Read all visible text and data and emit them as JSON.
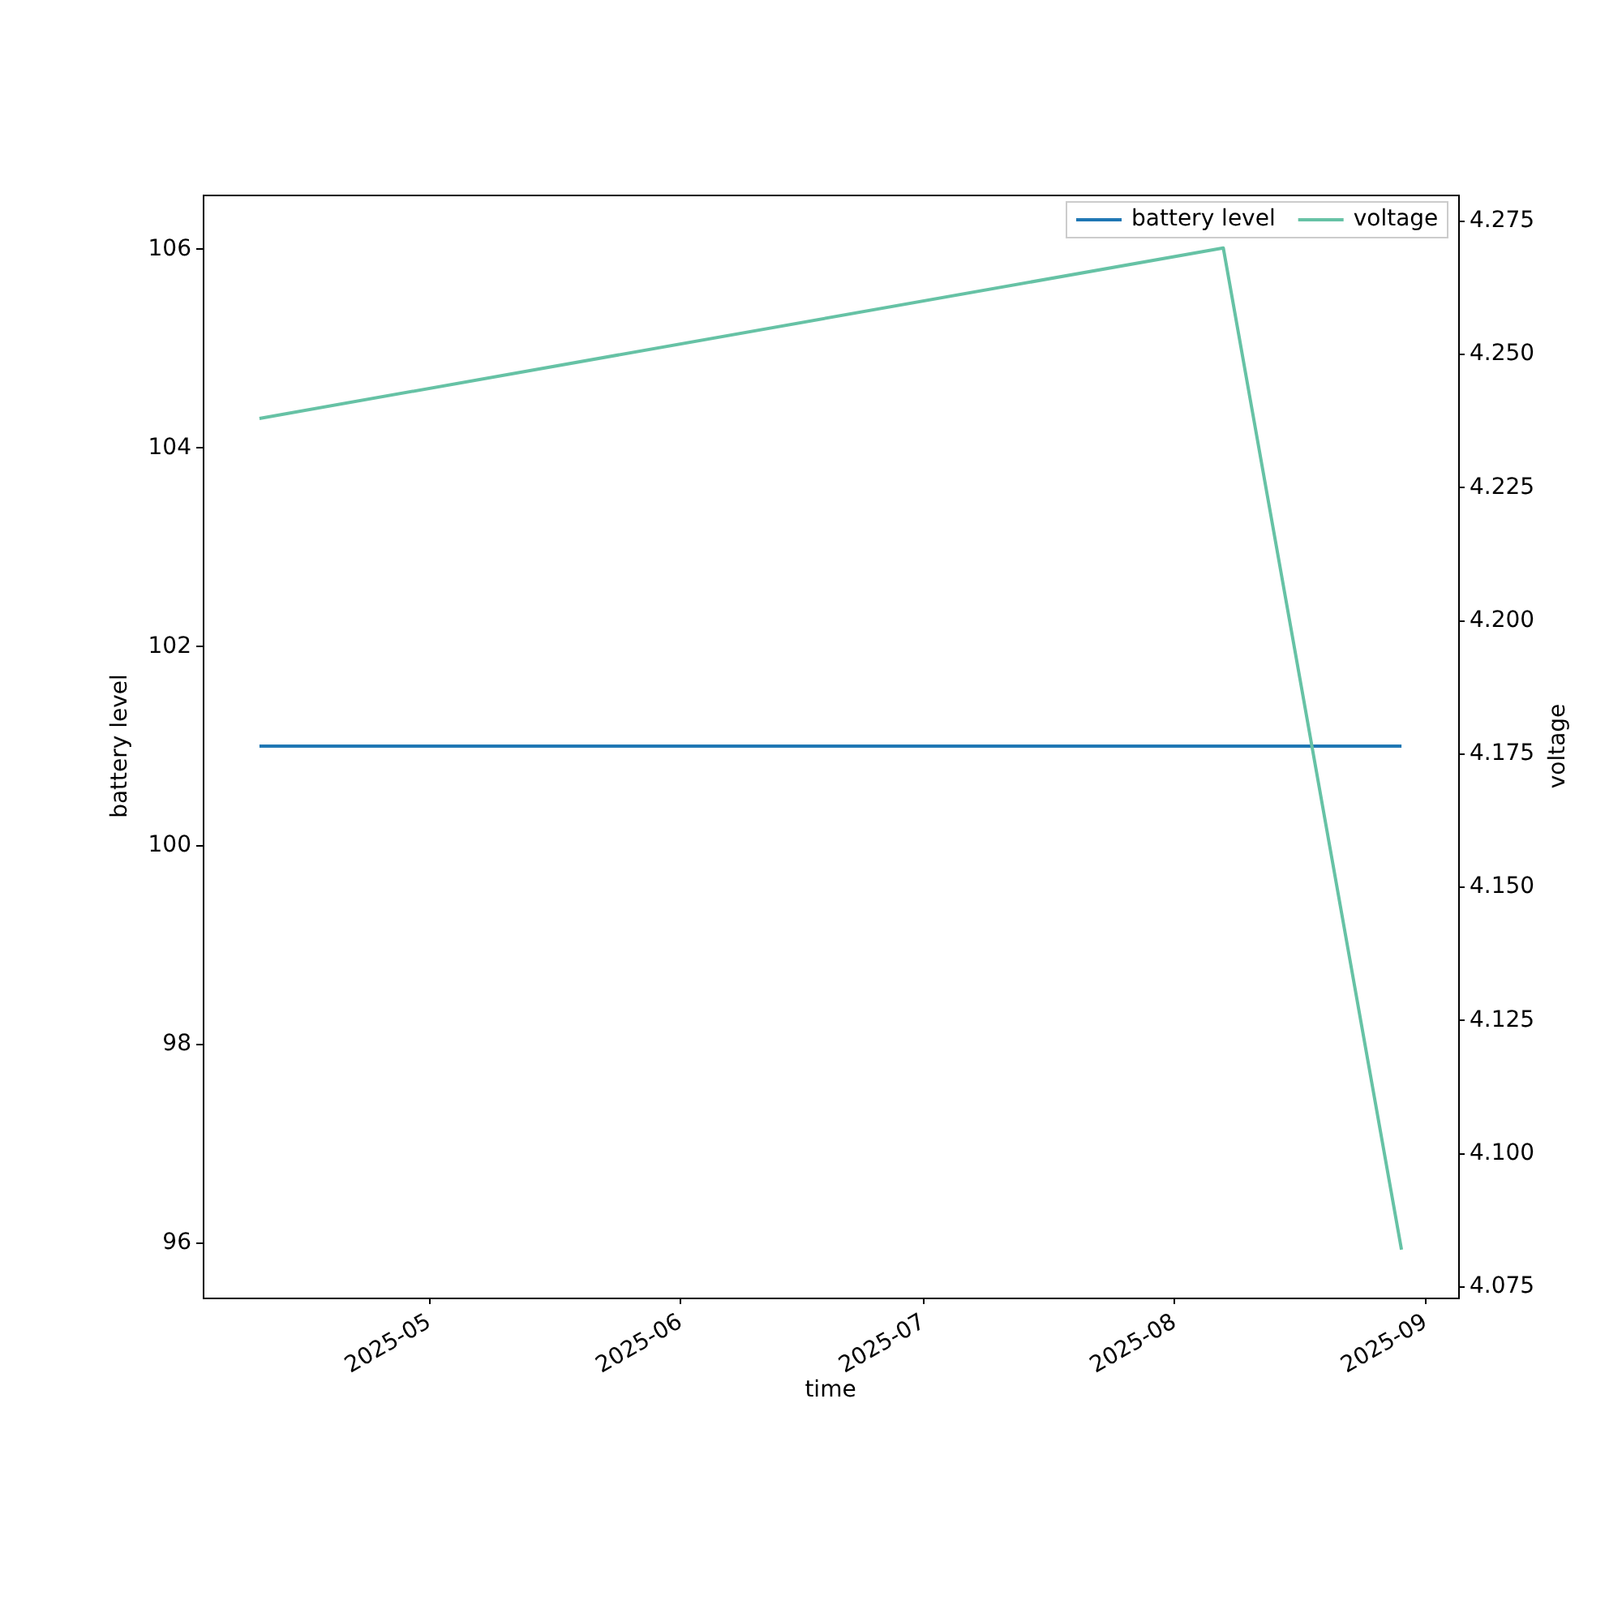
{
  "chart_data": {
    "type": "line",
    "xlabel": "time",
    "ylabel": "battery level",
    "y2label": "voltage",
    "x": [
      "2025-04-10",
      "2025-08-07",
      "2025-08-29"
    ],
    "series": [
      {
        "name": "battery level",
        "color": "#1f77b4",
        "values": [
          101,
          101,
          101
        ]
      },
      {
        "name": "voltage",
        "color": "#66c2a5",
        "values": [
          4.238,
          4.27,
          4.082
        ],
        "axis": "y2"
      }
    ],
    "xlim": [
      "2025-04-03",
      "2025-09-05"
    ],
    "xticks": [
      "2025-05",
      "2025-06",
      "2025-07",
      "2025-08",
      "2025-09"
    ],
    "ylim": [
      95.45,
      106.55
    ],
    "yticks": [
      96,
      98,
      100,
      102,
      104,
      106
    ],
    "y2lim": [
      4.073,
      4.28
    ],
    "y2ticks": [
      4.075,
      {
        "value": 4.1,
        "label": "4.100"
      },
      4.125,
      {
        "value": 4.15,
        "label": "4.150"
      },
      4.175,
      {
        "value": 4.2,
        "label": "4.200"
      },
      4.225,
      {
        "value": 4.25,
        "label": "4.250"
      },
      4.275
    ],
    "legend": "top right"
  }
}
